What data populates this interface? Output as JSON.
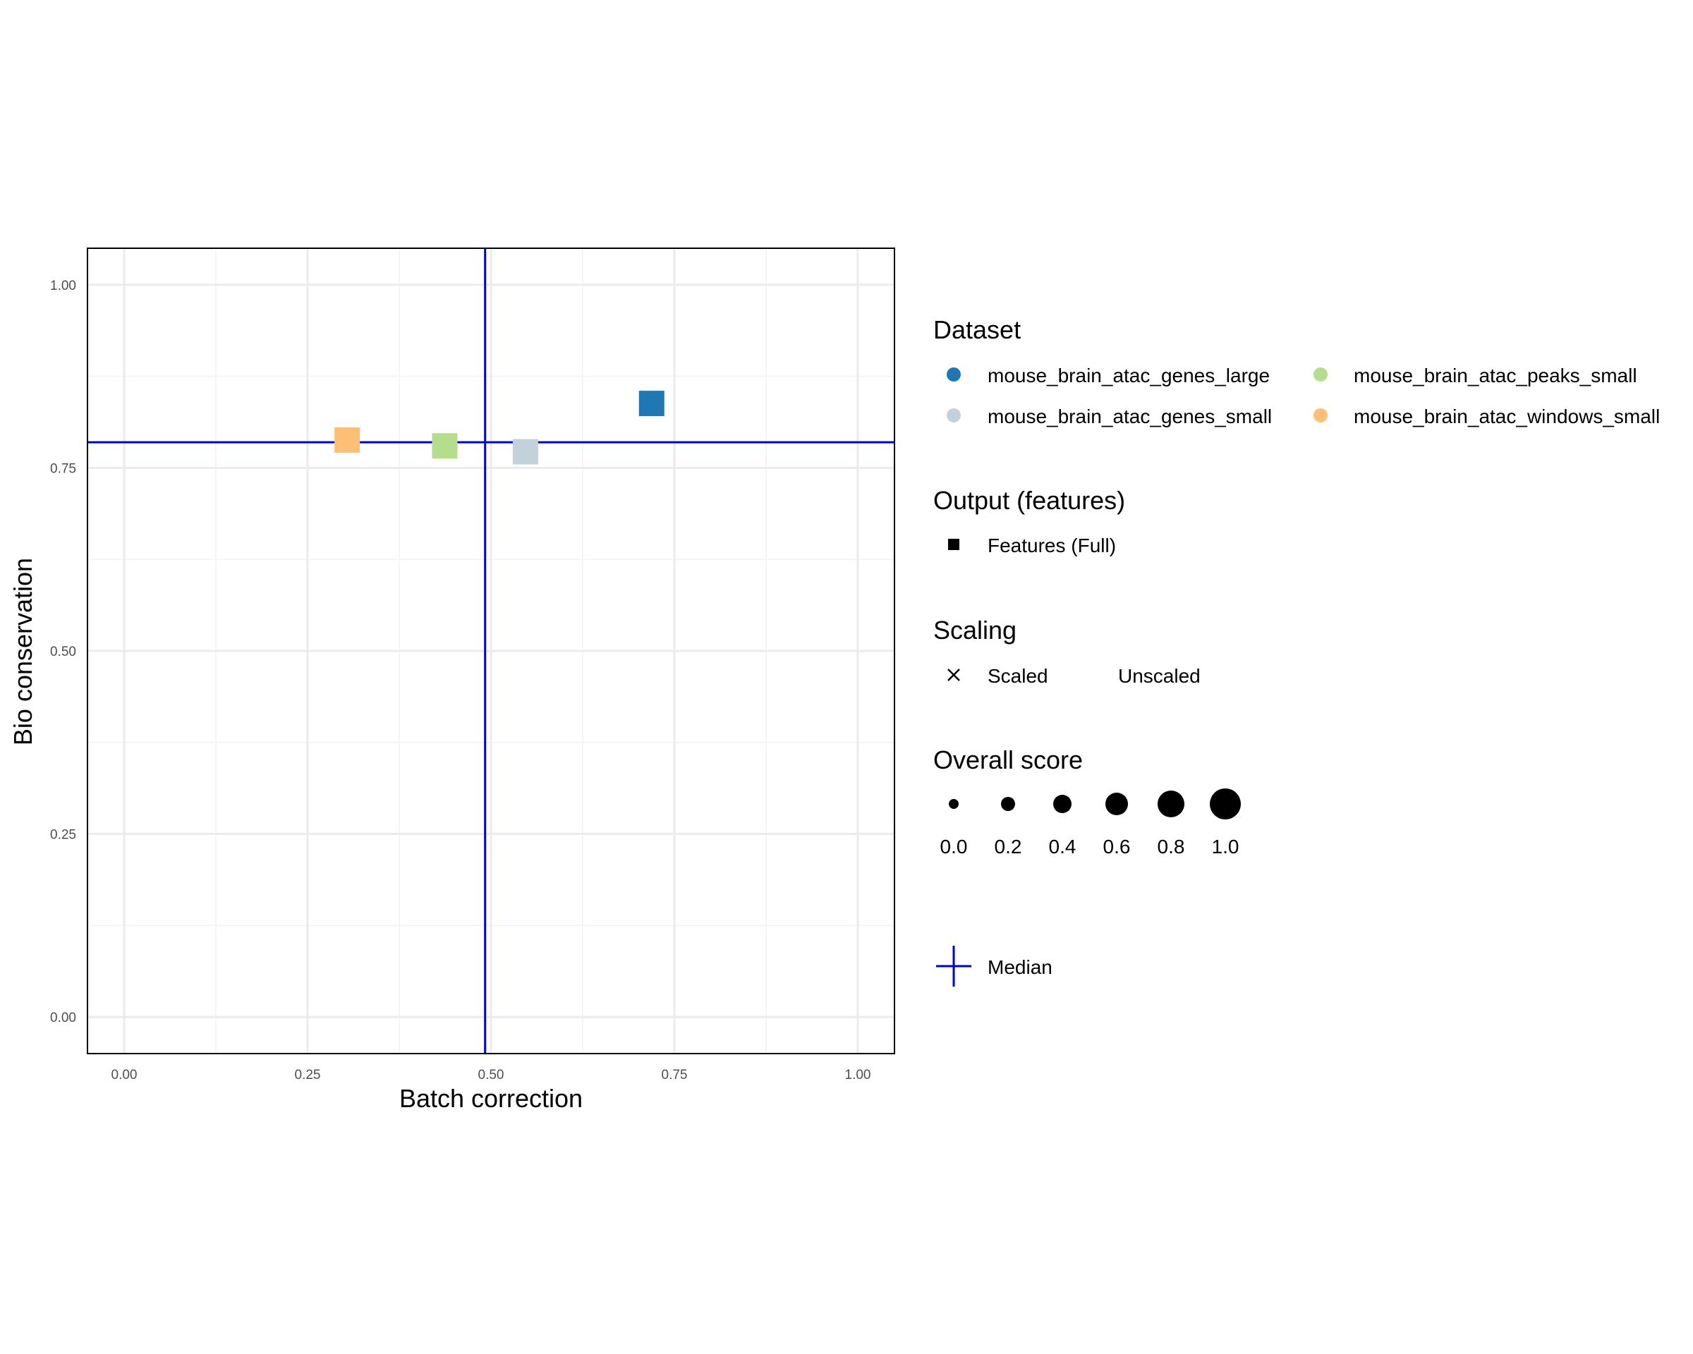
{
  "chart_data": {
    "type": "scatter",
    "title": "",
    "xlabel": "Batch correction",
    "ylabel": "Bio conservation",
    "xlim": [
      -0.05,
      1.05
    ],
    "ylim": [
      -0.05,
      1.05
    ],
    "x_ticks": [
      0,
      0.25,
      0.5,
      0.75,
      1
    ],
    "y_ticks": [
      0,
      0.25,
      0.5,
      0.75,
      1
    ],
    "x_tick_labels": [
      "0.00",
      "0.25",
      "0.50",
      "0.75",
      "1.00"
    ],
    "y_tick_labels": [
      "0.00",
      "0.25",
      "0.50",
      "0.75",
      "1.00"
    ],
    "grid": true,
    "median": {
      "x": 0.492,
      "y": 0.785,
      "color": "#0000dd"
    },
    "points": [
      {
        "dataset": "mouse_brain_atac_genes_large",
        "x": 0.719,
        "y": 0.838,
        "shape": "square",
        "color": "#1f77b4"
      },
      {
        "dataset": "mouse_brain_atac_genes_small",
        "x": 0.547,
        "y": 0.772,
        "shape": "square",
        "color": "#c3d1da"
      },
      {
        "dataset": "mouse_brain_atac_peaks_small",
        "x": 0.437,
        "y": 0.78,
        "shape": "square",
        "color": "#b5de8c"
      },
      {
        "dataset": "mouse_brain_atac_windows_small",
        "x": 0.304,
        "y": 0.788,
        "shape": "square",
        "color": "#fdbf76"
      }
    ],
    "legend": {
      "placement": "right",
      "dataset": {
        "title": "Dataset",
        "items": [
          {
            "label": "mouse_brain_atac_genes_large",
            "color": "#1f77b4"
          },
          {
            "label": "mouse_brain_atac_peaks_small",
            "color": "#b5de8c"
          },
          {
            "label": "mouse_brain_atac_genes_small",
            "color": "#c3d1da"
          },
          {
            "label": "mouse_brain_atac_windows_small",
            "color": "#fdbf76"
          }
        ]
      },
      "output": {
        "title": "Output (features)",
        "items": [
          {
            "label": "Features (Full)",
            "shape": "square"
          }
        ]
      },
      "scaling": {
        "title": "Scaling",
        "items": [
          {
            "label": "Scaled",
            "shape": "cross"
          },
          {
            "label": "Unscaled",
            "shape": "none"
          }
        ]
      },
      "overall_score": {
        "title": "Overall score",
        "items": [
          {
            "label": "0.0",
            "value": 0.0
          },
          {
            "label": "0.2",
            "value": 0.2
          },
          {
            "label": "0.4",
            "value": 0.4
          },
          {
            "label": "0.6",
            "value": 0.6
          },
          {
            "label": "0.8",
            "value": 0.8
          },
          {
            "label": "1.0",
            "value": 1.0
          }
        ]
      },
      "median_item": {
        "label": "Median",
        "color": "#0000dd"
      }
    }
  }
}
